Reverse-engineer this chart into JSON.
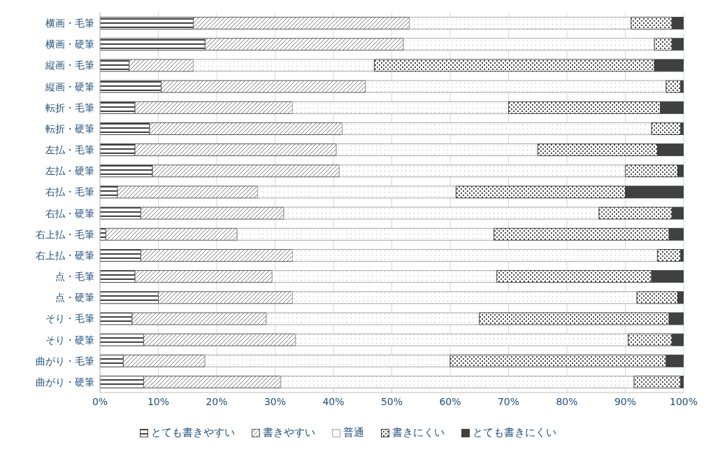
{
  "chart_data": {
    "type": "bar",
    "orientation": "horizontal",
    "stacked": true,
    "categories": [
      "横画・毛筆",
      "横画・硬筆",
      "縦画・毛筆",
      "縦画・硬筆",
      "転折・毛筆",
      "転折・硬筆",
      "左払・毛筆",
      "左払・硬筆",
      "右払・毛筆",
      "右払・硬筆",
      "右上払・毛筆",
      "右上払・硬筆",
      "点・毛筆",
      "点・硬筆",
      "そり・毛筆",
      "そり・硬筆",
      "曲がり・毛筆",
      "曲がり・硬筆"
    ],
    "series": [
      {
        "name": "とても書きやすい",
        "color": "#404040",
        "values": [
          16,
          18,
          5,
          10.5,
          6,
          8.5,
          6,
          9,
          3,
          7,
          1,
          7,
          6,
          10,
          5.5,
          7.5,
          4,
          7.5
        ]
      },
      {
        "name": "書きやすい",
        "color": "#595959",
        "values": [
          37,
          34,
          11,
          35,
          27,
          33,
          34.5,
          32,
          24,
          24.5,
          22.5,
          26,
          23.5,
          23,
          23,
          26,
          14,
          23.5
        ]
      },
      {
        "name": "普通",
        "color": "#a6a6a6",
        "values": [
          38,
          43,
          31,
          51.5,
          37,
          53,
          34.5,
          49,
          34,
          54,
          44,
          62.5,
          38.5,
          59,
          36.5,
          57,
          42,
          60.5
        ]
      },
      {
        "name": "書きにくい",
        "color": "#404040",
        "values": [
          7,
          3,
          48,
          2.5,
          26,
          5,
          20.5,
          9,
          29,
          12.5,
          30,
          4,
          26.5,
          7,
          32.5,
          7.5,
          37,
          8
        ]
      },
      {
        "name": "とても書きにくい",
        "color": "#404040",
        "values": [
          2,
          2,
          5,
          0.5,
          4,
          0.5,
          4.5,
          1,
          10,
          2,
          2.5,
          0.5,
          5.5,
          1,
          2.5,
          2,
          3,
          0.5
        ]
      }
    ],
    "xlim": [
      0,
      100
    ],
    "xticks": [
      {
        "value": 0,
        "label": "0%"
      },
      {
        "value": 10,
        "label": "10%"
      },
      {
        "value": 20,
        "label": "20%"
      },
      {
        "value": 30,
        "label": "30%"
      },
      {
        "value": 40,
        "label": "40%"
      },
      {
        "value": 50,
        "label": "50%"
      },
      {
        "value": 60,
        "label": "60%"
      },
      {
        "value": 70,
        "label": "70%"
      },
      {
        "value": 80,
        "label": "80%"
      },
      {
        "value": 90,
        "label": "90%"
      },
      {
        "value": 100,
        "label": "100%"
      }
    ],
    "grid": "x",
    "legend": "bottom"
  }
}
